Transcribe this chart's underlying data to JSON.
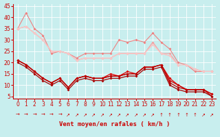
{
  "bg_color": "#c8eeee",
  "grid_color": "#ffffff",
  "xlabel": "Vent moyen/en rafales ( km/h )",
  "ylim": [
    4,
    46
  ],
  "xlim": [
    -0.5,
    23.5
  ],
  "yticks": [
    5,
    10,
    15,
    20,
    25,
    30,
    35,
    40,
    45
  ],
  "xticks": [
    0,
    1,
    2,
    3,
    4,
    5,
    6,
    7,
    8,
    9,
    10,
    11,
    12,
    13,
    14,
    15,
    16,
    17,
    18,
    19,
    20,
    21,
    22,
    23
  ],
  "series_light": [
    [
      35,
      42,
      35,
      32,
      24,
      25,
      24,
      22,
      24,
      24,
      24,
      24,
      30,
      29,
      30,
      29,
      33,
      29,
      26,
      20,
      19,
      16,
      16,
      16
    ],
    [
      35,
      36,
      33,
      30,
      25,
      25,
      24,
      21,
      22,
      22,
      22,
      22,
      24,
      24,
      24,
      24,
      29,
      24,
      24,
      19,
      19,
      17,
      16,
      16
    ],
    [
      35,
      36,
      33,
      30,
      25,
      25,
      24,
      21,
      22,
      22,
      22,
      22,
      24,
      24,
      24,
      24,
      28,
      24,
      23,
      19,
      19,
      17,
      16,
      16
    ],
    [
      35,
      36,
      33,
      30,
      25,
      25,
      24,
      21,
      22,
      22,
      22,
      22,
      24,
      24,
      24,
      24,
      28,
      24,
      23,
      19,
      19,
      17,
      16,
      16
    ]
  ],
  "light_colors": [
    "#f08080",
    "#f4a0a0",
    "#f8b8b8",
    "#fac8c8"
  ],
  "series_dark": [
    [
      21,
      19,
      16,
      13,
      11,
      13,
      9,
      13,
      14,
      13,
      13,
      15,
      14,
      16,
      15,
      18,
      18,
      19,
      13,
      10,
      8,
      8,
      8,
      6
    ],
    [
      21,
      19,
      16,
      13,
      11,
      13,
      9,
      13,
      14,
      13,
      13,
      14,
      14,
      15,
      15,
      18,
      18,
      19,
      12,
      10,
      8,
      8,
      8,
      6
    ],
    [
      21,
      19,
      16,
      13,
      11,
      13,
      9,
      13,
      14,
      13,
      13,
      14,
      14,
      15,
      15,
      18,
      18,
      19,
      11,
      9,
      8,
      8,
      8,
      5
    ],
    [
      20,
      18,
      15,
      12,
      10,
      12,
      8,
      12,
      13,
      12,
      12,
      13,
      13,
      14,
      14,
      17,
      17,
      18,
      10,
      8,
      7,
      7,
      7,
      5
    ]
  ],
  "dark_colors": [
    "#dd0000",
    "#cc0000",
    "#bb0000",
    "#aa0000"
  ],
  "tick_fontsize": 5.5,
  "xlabel_fontsize": 6.5,
  "marker_size": 2.0,
  "linewidth_light": 0.8,
  "linewidth_dark": 0.9,
  "arrow_chars": [
    "→",
    "→",
    "→",
    "→",
    "→",
    "→",
    "↗",
    "↗",
    "↗",
    "↗",
    "↗",
    "↗",
    "↗",
    "↗",
    "↗",
    "↗",
    "↗",
    "↑",
    "↑",
    "↑",
    "↑",
    "↑",
    "↗",
    "↗"
  ]
}
